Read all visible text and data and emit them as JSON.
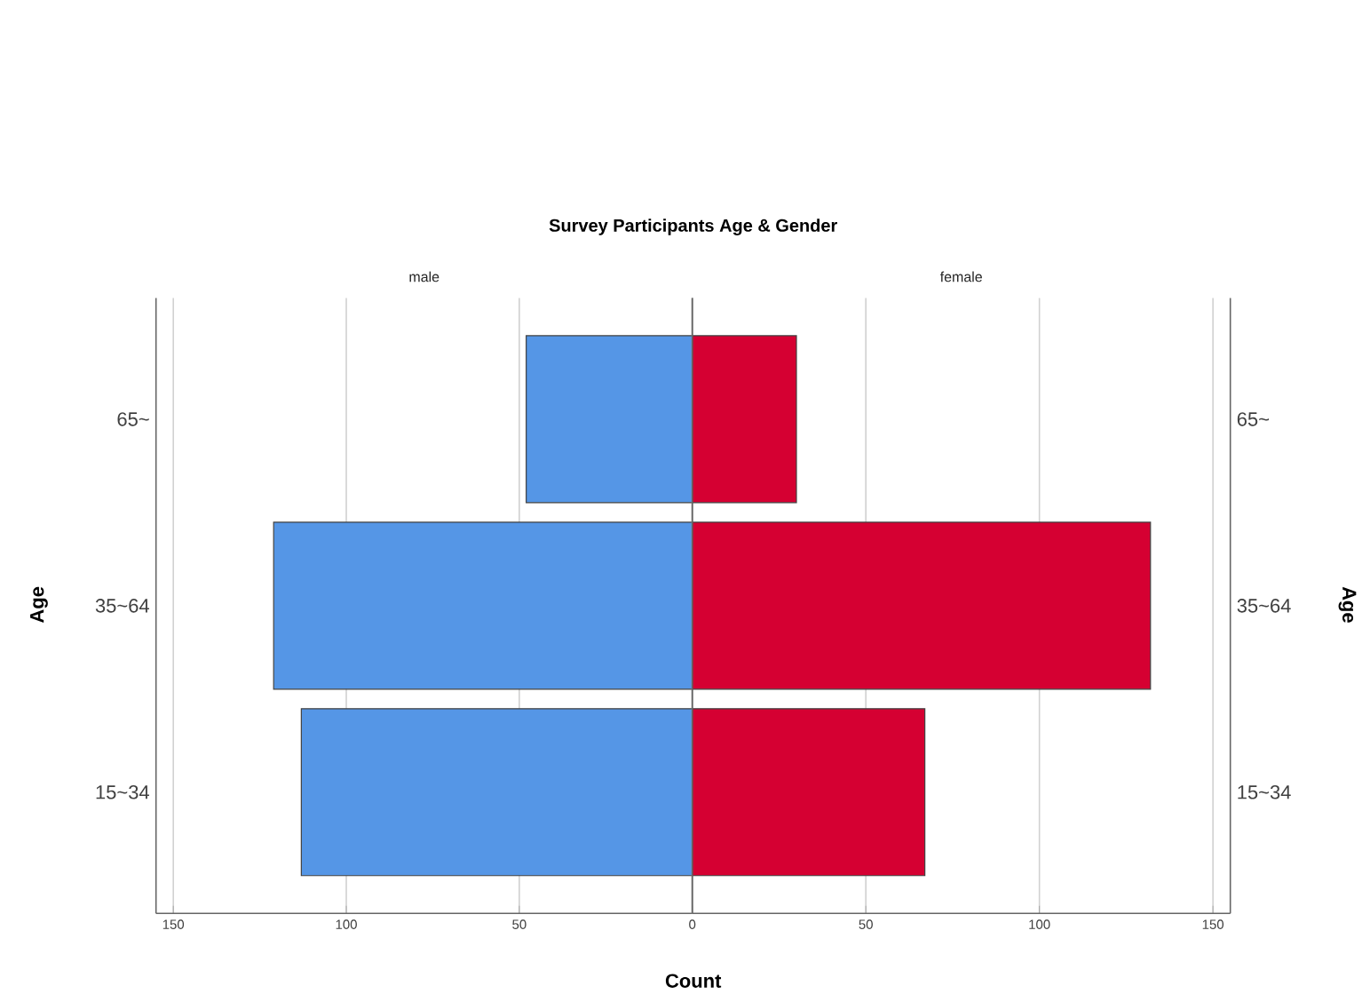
{
  "chart_data": [
    {
      "type": "bar",
      "orientation": "horizontal",
      "title": "Survey Participants Age & Gender",
      "subtitle": "male",
      "xlabel": "Count",
      "ylabel": "Age",
      "categories": [
        "65~",
        "35~64",
        "15~34"
      ],
      "values": [
        48,
        121,
        113
      ],
      "color": "#5596e6",
      "xlim": [
        155,
        0
      ],
      "xticks": [
        150,
        100,
        50,
        {
          "value": 0,
          "label": null
        }
      ],
      "grid": "x"
    },
    {
      "type": "bar",
      "orientation": "horizontal",
      "subtitle": "female",
      "ylabel": "Age",
      "categories": [
        "65~",
        "35~64",
        "15~34"
      ],
      "values": [
        30,
        132,
        67
      ],
      "color": "#d50032",
      "xlim": [
        0,
        155
      ],
      "xticks": [
        0,
        50,
        100,
        150
      ],
      "grid": "x"
    }
  ]
}
